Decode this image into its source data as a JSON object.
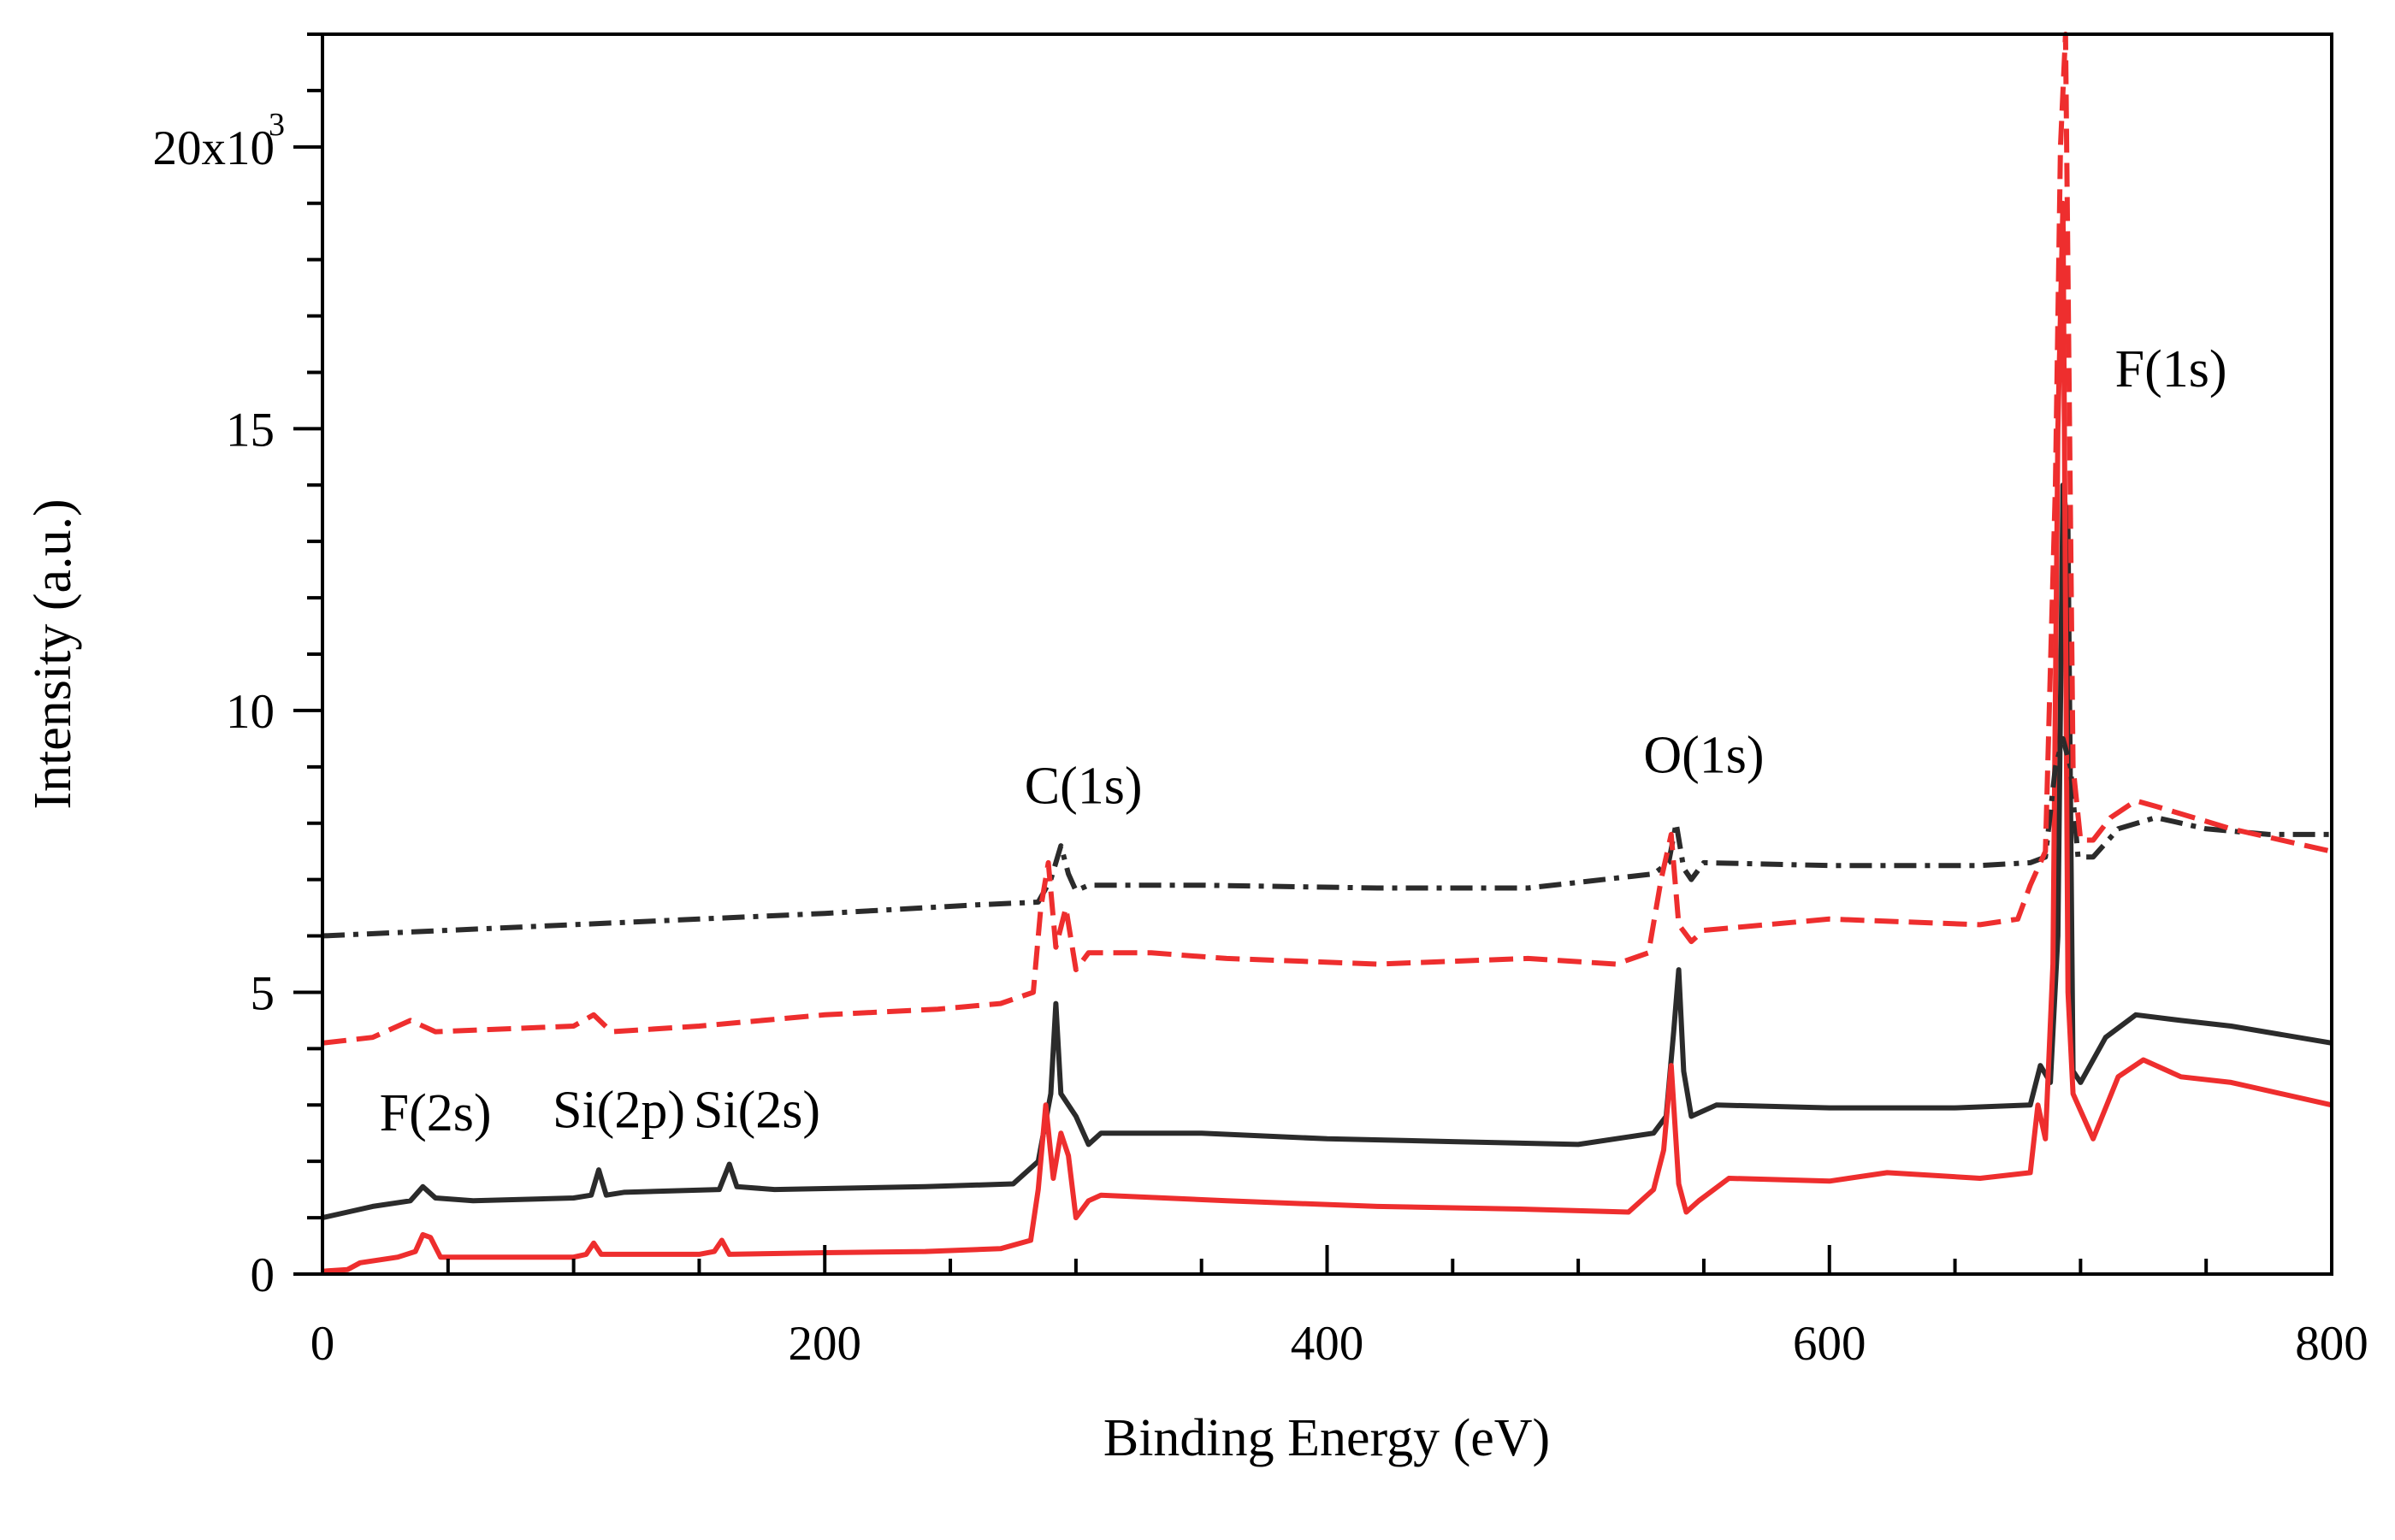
{
  "chart_data": {
    "type": "line",
    "title": "",
    "xlabel": "Binding Energy (eV)",
    "ylabel": "Intensity (a.u.)",
    "xlim": [
      0,
      800
    ],
    "ylim": [
      0,
      22000
    ],
    "grid": false,
    "legend": "none",
    "x_ticks": [
      {
        "value": 0,
        "label": "0"
      },
      {
        "value": 200,
        "label": "200"
      },
      {
        "value": 400,
        "label": "400"
      },
      {
        "value": 600,
        "label": "600"
      },
      {
        "value": 800,
        "label": "800"
      }
    ],
    "y_ticks": [
      {
        "value": 0,
        "label": "0"
      },
      {
        "value": 5000,
        "label": "5"
      },
      {
        "value": 10000,
        "label": "10"
      },
      {
        "value": 15000,
        "label": "15"
      },
      {
        "value": 20000,
        "label": "20x10",
        "superscript": "3"
      }
    ],
    "annotations": [
      {
        "text": "F(2s)",
        "x": 45,
        "y": 2550
      },
      {
        "text": "Si(2p)",
        "x": 118,
        "y": 2600
      },
      {
        "text": "Si(2s)",
        "x": 173,
        "y": 2600
      },
      {
        "text": "C(1s)",
        "x": 303,
        "y": 8350
      },
      {
        "text": "O(1s)",
        "x": 550,
        "y": 8900
      },
      {
        "text": "F(1s)",
        "x": 736,
        "y": 15750
      }
    ],
    "series": [
      {
        "name": "black-solid",
        "color": "#2b2b2b",
        "dash": "solid",
        "points": [
          [
            0,
            1000
          ],
          [
            10,
            1100
          ],
          [
            20,
            1200
          ],
          [
            35,
            1300
          ],
          [
            40,
            1550
          ],
          [
            45,
            1350
          ],
          [
            60,
            1300
          ],
          [
            100,
            1350
          ],
          [
            107,
            1400
          ],
          [
            110,
            1850
          ],
          [
            113,
            1400
          ],
          [
            120,
            1450
          ],
          [
            158,
            1500
          ],
          [
            162,
            1950
          ],
          [
            165,
            1550
          ],
          [
            180,
            1500
          ],
          [
            240,
            1550
          ],
          [
            275,
            1600
          ],
          [
            285,
            2000
          ],
          [
            290,
            3200
          ],
          [
            292,
            4800
          ],
          [
            294,
            3200
          ],
          [
            297,
            3000
          ],
          [
            300,
            2800
          ],
          [
            305,
            2300
          ],
          [
            310,
            2500
          ],
          [
            350,
            2500
          ],
          [
            400,
            2400
          ],
          [
            450,
            2350
          ],
          [
            500,
            2300
          ],
          [
            530,
            2500
          ],
          [
            535,
            2800
          ],
          [
            538,
            4300
          ],
          [
            540,
            5400
          ],
          [
            542,
            3600
          ],
          [
            545,
            2800
          ],
          [
            555,
            3000
          ],
          [
            600,
            2950
          ],
          [
            650,
            2950
          ],
          [
            680,
            3000
          ],
          [
            684,
            3700
          ],
          [
            688,
            3400
          ],
          [
            691,
            6000
          ],
          [
            693,
            14000
          ],
          [
            695,
            13200
          ],
          [
            697,
            3600
          ],
          [
            700,
            3400
          ],
          [
            710,
            4200
          ],
          [
            722,
            4600
          ],
          [
            740,
            4500
          ],
          [
            760,
            4400
          ],
          [
            800,
            4100
          ]
        ]
      },
      {
        "name": "red-solid",
        "color": "#ee2e2e",
        "dash": "solid",
        "points": [
          [
            0,
            50
          ],
          [
            10,
            80
          ],
          [
            15,
            200
          ],
          [
            30,
            300
          ],
          [
            37,
            400
          ],
          [
            40,
            700
          ],
          [
            43,
            650
          ],
          [
            47,
            300
          ],
          [
            100,
            300
          ],
          [
            105,
            350
          ],
          [
            108,
            550
          ],
          [
            111,
            350
          ],
          [
            150,
            350
          ],
          [
            156,
            400
          ],
          [
            159,
            600
          ],
          [
            162,
            350
          ],
          [
            200,
            380
          ],
          [
            240,
            400
          ],
          [
            270,
            450
          ],
          [
            282,
            600
          ],
          [
            285,
            1500
          ],
          [
            288,
            3000
          ],
          [
            291,
            1700
          ],
          [
            294,
            2500
          ],
          [
            297,
            2100
          ],
          [
            300,
            1000
          ],
          [
            305,
            1300
          ],
          [
            310,
            1400
          ],
          [
            360,
            1300
          ],
          [
            420,
            1200
          ],
          [
            480,
            1150
          ],
          [
            520,
            1100
          ],
          [
            530,
            1500
          ],
          [
            534,
            2200
          ],
          [
            537,
            3700
          ],
          [
            540,
            1600
          ],
          [
            543,
            1100
          ],
          [
            548,
            1300
          ],
          [
            560,
            1700
          ],
          [
            600,
            1650
          ],
          [
            623,
            1800
          ],
          [
            660,
            1700
          ],
          [
            680,
            1800
          ],
          [
            683,
            3000
          ],
          [
            686,
            2400
          ],
          [
            689,
            5500
          ],
          [
            691,
            15000
          ],
          [
            693,
            19000
          ],
          [
            695,
            5000
          ],
          [
            697,
            3200
          ],
          [
            700,
            2900
          ],
          [
            705,
            2400
          ],
          [
            715,
            3500
          ],
          [
            725,
            3800
          ],
          [
            740,
            3500
          ],
          [
            760,
            3400
          ],
          [
            800,
            3000
          ]
        ]
      },
      {
        "name": "black-dashed",
        "color": "#2b2b2b",
        "dash": "dashdot",
        "points": [
          [
            0,
            6000
          ],
          [
            50,
            6100
          ],
          [
            100,
            6200
          ],
          [
            150,
            6300
          ],
          [
            200,
            6400
          ],
          [
            260,
            6550
          ],
          [
            285,
            6600
          ],
          [
            290,
            7000
          ],
          [
            294,
            7600
          ],
          [
            297,
            7100
          ],
          [
            300,
            6800
          ],
          [
            305,
            6900
          ],
          [
            350,
            6900
          ],
          [
            420,
            6850
          ],
          [
            480,
            6850
          ],
          [
            530,
            7100
          ],
          [
            536,
            7300
          ],
          [
            539,
            8000
          ],
          [
            542,
            7200
          ],
          [
            545,
            7000
          ],
          [
            550,
            7300
          ],
          [
            600,
            7250
          ],
          [
            660,
            7250
          ],
          [
            680,
            7300
          ],
          [
            686,
            7400
          ],
          [
            690,
            9000
          ],
          [
            693,
            9500
          ],
          [
            696,
            9000
          ],
          [
            699,
            7400
          ],
          [
            705,
            7400
          ],
          [
            715,
            7900
          ],
          [
            730,
            8100
          ],
          [
            750,
            7900
          ],
          [
            775,
            7800
          ],
          [
            800,
            7800
          ]
        ]
      },
      {
        "name": "red-dashed",
        "color": "#ee2e2e",
        "dash": "dashed",
        "points": [
          [
            0,
            4100
          ],
          [
            20,
            4200
          ],
          [
            35,
            4500
          ],
          [
            45,
            4300
          ],
          [
            100,
            4400
          ],
          [
            108,
            4600
          ],
          [
            115,
            4300
          ],
          [
            150,
            4400
          ],
          [
            200,
            4600
          ],
          [
            245,
            4700
          ],
          [
            270,
            4800
          ],
          [
            283,
            5000
          ],
          [
            286,
            6500
          ],
          [
            289,
            7300
          ],
          [
            292,
            5800
          ],
          [
            296,
            6500
          ],
          [
            300,
            5400
          ],
          [
            305,
            5700
          ],
          [
            330,
            5700
          ],
          [
            360,
            5600
          ],
          [
            420,
            5500
          ],
          [
            480,
            5600
          ],
          [
            515,
            5500
          ],
          [
            528,
            5700
          ],
          [
            533,
            7000
          ],
          [
            537,
            7800
          ],
          [
            540,
            6200
          ],
          [
            545,
            5900
          ],
          [
            550,
            6100
          ],
          [
            600,
            6300
          ],
          [
            660,
            6200
          ],
          [
            675,
            6300
          ],
          [
            680,
            6900
          ],
          [
            686,
            7500
          ],
          [
            690,
            14000
          ],
          [
            692,
            20000
          ],
          [
            694,
            22000
          ],
          [
            697,
            9000
          ],
          [
            700,
            7700
          ],
          [
            705,
            7700
          ],
          [
            712,
            8100
          ],
          [
            722,
            8400
          ],
          [
            730,
            8300
          ],
          [
            760,
            7900
          ],
          [
            800,
            7500
          ]
        ]
      }
    ]
  }
}
